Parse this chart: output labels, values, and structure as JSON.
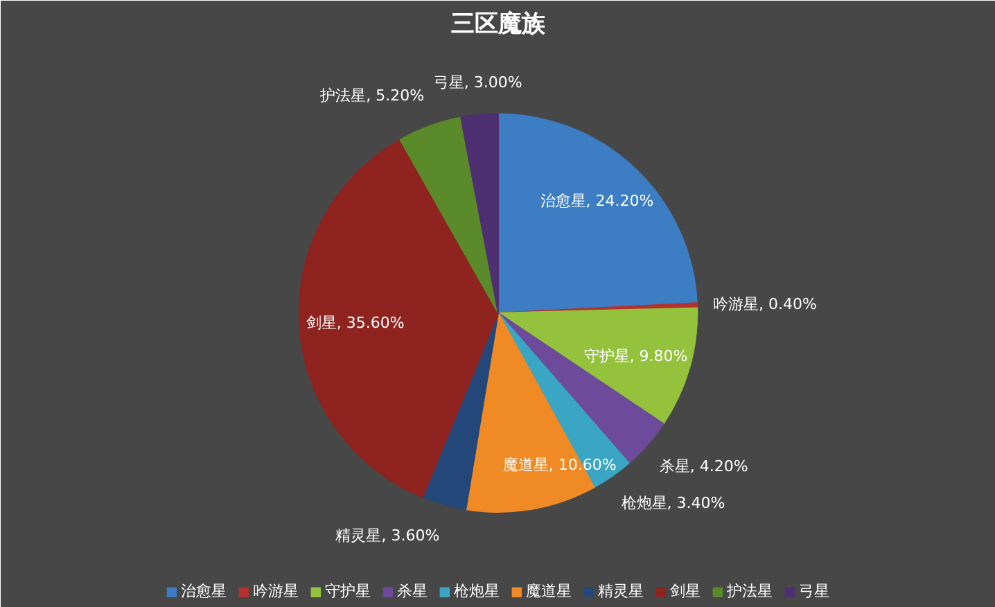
{
  "chart_data": {
    "type": "pie",
    "title": "三区魔族",
    "categories": [
      "治愈星",
      "吟游星",
      "守护星",
      "杀星",
      "枪炮星",
      "魔道星",
      "精灵星",
      "剑星",
      "护法星",
      "弓星"
    ],
    "values": [
      24.2,
      0.4,
      9.8,
      4.2,
      3.4,
      10.6,
      3.6,
      35.6,
      5.2,
      3.0
    ],
    "colors": [
      "#3c7dc4",
      "#b4312c",
      "#94c23c",
      "#6e4a9a",
      "#3aa6c4",
      "#f08a24",
      "#24477a",
      "#8e231f",
      "#5b8a2a",
      "#4e2f72"
    ],
    "value_labels": [
      "治愈星, 24.20%",
      "吟游星, 0.40%",
      "守护星, 9.80%",
      "杀星, 4.20%",
      "枪炮星, 3.40%",
      "魔道星, 10.60%",
      "精灵星, 3.60%",
      "剑星, 35.60%",
      "护法星, 5.20%",
      "弓星, 3.00%"
    ],
    "legend": "bottom"
  }
}
